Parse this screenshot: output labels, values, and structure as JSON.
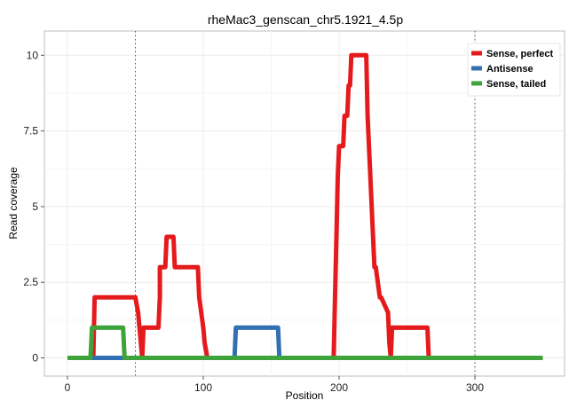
{
  "chart_data": {
    "type": "line",
    "title": "rheMac3_genscan_chr5.1921_4.5p",
    "xlabel": "Position",
    "ylabel": "Read coverage",
    "xlim": [
      -17,
      366
    ],
    "ylim": [
      -0.6,
      10.8
    ],
    "x_ticks": [
      0,
      100,
      200,
      300
    ],
    "x_tick_labels": [
      "0",
      "100",
      "200",
      "300"
    ],
    "y_ticks": [
      0,
      2.5,
      5,
      7.5,
      10
    ],
    "y_tick_labels": [
      "0",
      "2.5",
      "5",
      "7.5",
      "10"
    ],
    "grid": true,
    "legend_position": "top-right",
    "vlines": [
      50,
      300
    ],
    "series": [
      {
        "name": "Sense, perfect",
        "color": "#e41a1c",
        "x": [
          0,
          19,
          20,
          50,
          52,
          55,
          56,
          67,
          68,
          68,
          72,
          73,
          78,
          79,
          79,
          82,
          83,
          96,
          97,
          100,
          101,
          103,
          104,
          196,
          197,
          198,
          199,
          200,
          201,
          203,
          204,
          206,
          207,
          208,
          209,
          211,
          212,
          220,
          221,
          226,
          227,
          230,
          231,
          236,
          237,
          238,
          239,
          240,
          241,
          265,
          266,
          350
        ],
        "y": [
          0,
          0,
          2,
          2,
          1.5,
          0,
          1,
          1,
          2,
          3,
          3,
          4,
          4,
          3,
          3,
          3,
          3,
          3,
          2,
          1,
          0.5,
          0,
          0,
          0,
          2,
          4,
          6,
          7,
          7,
          7,
          8,
          8,
          9,
          9,
          10,
          10,
          10,
          10,
          8,
          3,
          3,
          2,
          2,
          1.5,
          0.5,
          0,
          1,
          1,
          1,
          1,
          0,
          0
        ]
      },
      {
        "name": "Antisense",
        "color": "#3070b3",
        "x": [
          0,
          123,
          124,
          124,
          155,
          155,
          156,
          350
        ],
        "y": [
          0,
          0,
          1,
          1,
          1,
          1,
          0,
          0
        ]
      },
      {
        "name": "Sense, tailed",
        "color": "#3ea33a",
        "x": [
          0,
          17,
          18,
          41,
          42,
          350
        ],
        "y": [
          0,
          0,
          1,
          1,
          0,
          0
        ]
      }
    ]
  }
}
